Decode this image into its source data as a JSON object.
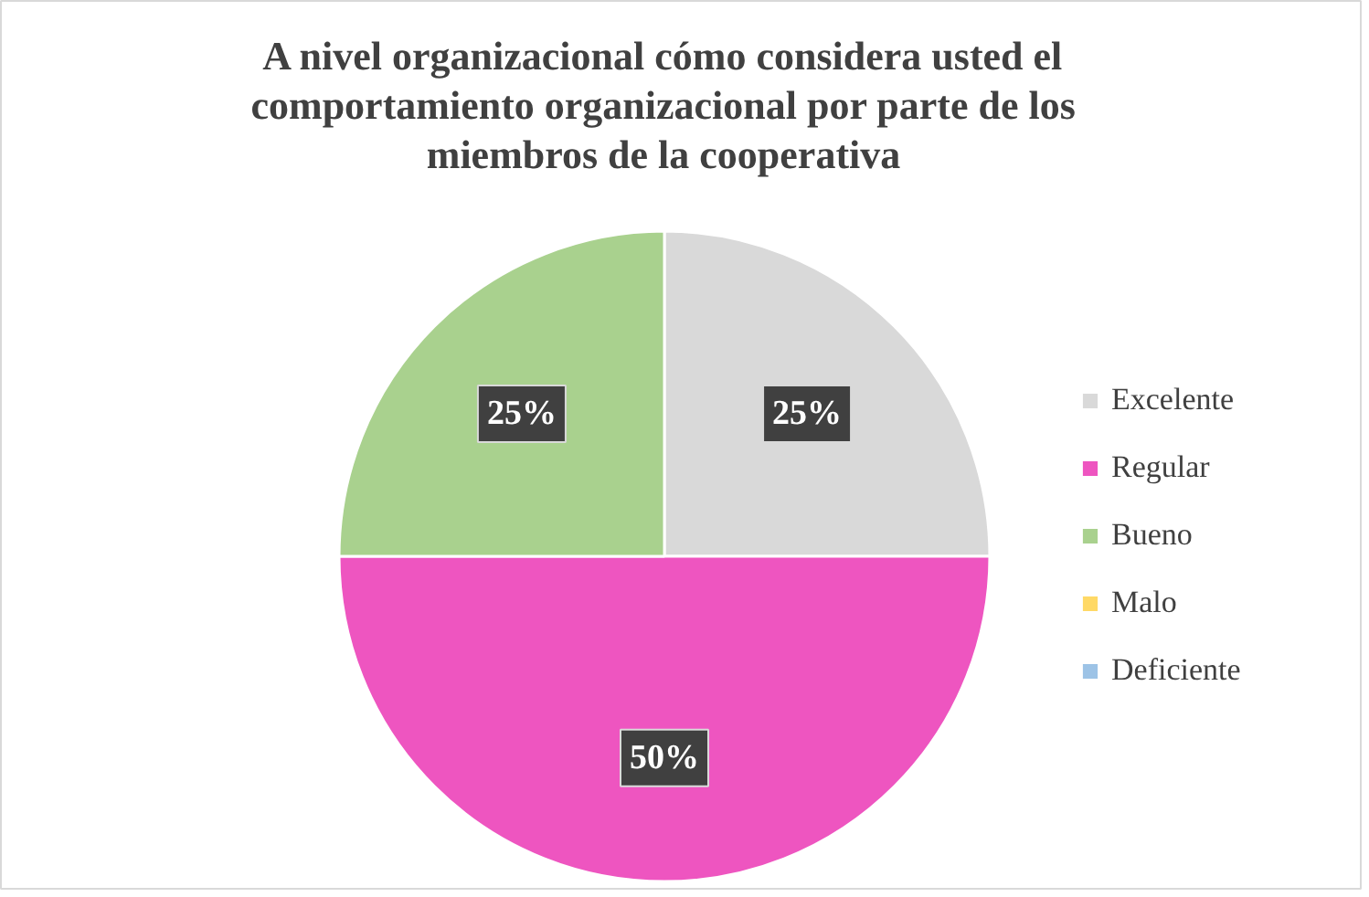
{
  "chart_data": {
    "type": "pie",
    "title": "A nivel organizacional cómo considera usted el comportamiento organizacional por parte de los miembros de la cooperativa",
    "categories": [
      "Excelente",
      "Regular",
      "Bueno",
      "Malo",
      "Deficiente"
    ],
    "values": [
      25,
      50,
      25,
      0,
      0
    ],
    "colors": [
      "#d9d9d9",
      "#ee55c0",
      "#a9d18e",
      "#ffd966",
      "#9dc3e6"
    ],
    "value_labels": [
      "25%",
      "50%",
      "25%",
      null,
      null
    ],
    "legend": "right"
  }
}
